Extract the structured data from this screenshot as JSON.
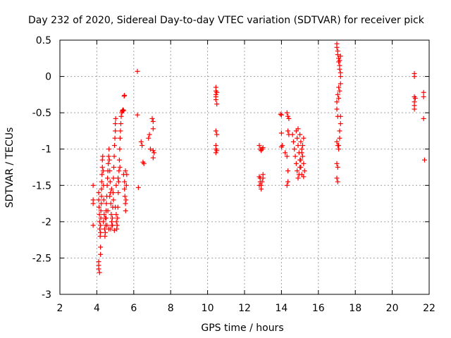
{
  "chart_data": {
    "type": "scatter",
    "title": "Day 232 of 2020, Sidereal Day-to-day VTEC variation (SDTVAR) for receiver pick",
    "xlabel": "GPS time / hours",
    "ylabel": "SDTVAR / TECUs",
    "xlim": [
      2,
      22
    ],
    "ylim": [
      -3,
      0.5
    ],
    "x_ticks": [
      2,
      4,
      6,
      8,
      10,
      12,
      14,
      16,
      18,
      20,
      22
    ],
    "y_ticks": [
      0.5,
      0,
      -0.5,
      -1,
      -1.5,
      -2,
      -2.5,
      -3
    ],
    "x_tick_labels": [
      "2",
      "4",
      "6",
      "8",
      "10",
      "12",
      "14",
      "16",
      "18",
      "20",
      "22"
    ],
    "y_tick_labels": [
      "0.5",
      "0",
      "-0.5",
      "-1",
      "-1.5",
      "-2",
      "-2.5",
      "-3"
    ],
    "grid": true,
    "marker": "+",
    "color": "#ff0000",
    "series": [
      {
        "values": [
          [
            3.8,
            -1.5
          ],
          [
            3.8,
            -1.7
          ],
          [
            3.8,
            -1.75
          ],
          [
            3.8,
            -2.05
          ],
          [
            4.1,
            -2.6
          ],
          [
            4.1,
            -2.65
          ],
          [
            4.1,
            -2.55
          ],
          [
            4.15,
            -2.7
          ],
          [
            4.2,
            -2.35
          ],
          [
            4.2,
            -2.45
          ],
          [
            4.1,
            -1.6
          ],
          [
            4.1,
            -1.7
          ],
          [
            4.12,
            -1.8
          ],
          [
            4.14,
            -1.9
          ],
          [
            4.15,
            -2.0
          ],
          [
            4.16,
            -2.1
          ],
          [
            4.18,
            -2.2
          ],
          [
            4.2,
            -2.15
          ],
          [
            4.2,
            -2.05
          ],
          [
            4.22,
            -1.95
          ],
          [
            4.22,
            -1.85
          ],
          [
            4.24,
            -1.75
          ],
          [
            4.25,
            -1.65
          ],
          [
            4.25,
            -1.55
          ],
          [
            4.26,
            -1.45
          ],
          [
            4.28,
            -1.35
          ],
          [
            4.3,
            -1.25
          ],
          [
            4.3,
            -1.15
          ],
          [
            4.32,
            -1.1
          ],
          [
            4.34,
            -1.3
          ],
          [
            4.36,
            -1.5
          ],
          [
            4.38,
            -1.7
          ],
          [
            4.4,
            -1.9
          ],
          [
            4.42,
            -2.1
          ],
          [
            4.44,
            -2.2
          ],
          [
            4.46,
            -2.15
          ],
          [
            4.48,
            -2.05
          ],
          [
            4.5,
            -1.95
          ],
          [
            4.5,
            -1.85
          ],
          [
            4.52,
            -1.75
          ],
          [
            4.54,
            -1.65
          ],
          [
            4.56,
            -1.5
          ],
          [
            4.58,
            -1.4
          ],
          [
            4.6,
            -1.3
          ],
          [
            4.62,
            -1.2
          ],
          [
            4.64,
            -1.1
          ],
          [
            4.66,
            -1.0
          ],
          [
            4.68,
            -1.15
          ],
          [
            4.7,
            -1.3
          ],
          [
            4.72,
            -1.45
          ],
          [
            4.74,
            -1.6
          ],
          [
            4.76,
            -1.75
          ],
          [
            4.78,
            -1.9
          ],
          [
            4.8,
            -2.0
          ],
          [
            4.82,
            -2.05
          ],
          [
            4.84,
            -1.95
          ],
          [
            4.86,
            -1.8
          ],
          [
            4.88,
            -1.6
          ],
          [
            4.9,
            -1.4
          ],
          [
            4.92,
            -1.25
          ],
          [
            4.94,
            -1.1
          ],
          [
            4.96,
            -0.95
          ],
          [
            4.98,
            -0.85
          ],
          [
            5.0,
            -0.75
          ],
          [
            5.0,
            -0.65
          ],
          [
            5.02,
            -0.58
          ],
          [
            5.05,
            -1.9
          ],
          [
            5.06,
            -2.0
          ],
          [
            5.08,
            -2.1
          ],
          [
            5.1,
            -2.05
          ],
          [
            5.12,
            -1.95
          ],
          [
            5.14,
            -1.8
          ],
          [
            5.16,
            -1.6
          ],
          [
            5.18,
            -1.45
          ],
          [
            5.2,
            -1.3
          ],
          [
            5.22,
            -1.15
          ],
          [
            5.24,
            -1.0
          ],
          [
            5.26,
            -0.85
          ],
          [
            5.28,
            -0.75
          ],
          [
            5.3,
            -0.65
          ],
          [
            5.32,
            -0.55
          ],
          [
            5.35,
            -0.5
          ],
          [
            5.38,
            -0.48
          ],
          [
            5.4,
            -0.47
          ],
          [
            5.42,
            -0.46
          ],
          [
            5.45,
            -0.47
          ],
          [
            5.5,
            -0.26
          ],
          [
            5.48,
            -0.27
          ],
          [
            4.35,
            -2.0
          ],
          [
            4.45,
            -1.95
          ],
          [
            4.55,
            -2.05
          ],
          [
            4.65,
            -2.1
          ],
          [
            4.75,
            -2.1
          ],
          [
            4.85,
            -2.05
          ],
          [
            4.95,
            -2.12
          ],
          [
            4.6,
            -1.85
          ],
          [
            4.7,
            -1.65
          ],
          [
            4.8,
            -1.55
          ],
          [
            4.9,
            -1.7
          ],
          [
            5.0,
            -1.8
          ],
          [
            5.05,
            -1.5
          ],
          [
            5.15,
            -1.4
          ],
          [
            5.25,
            -1.25
          ],
          [
            5.45,
            -1.35
          ],
          [
            5.5,
            -1.45
          ],
          [
            5.5,
            -1.55
          ],
          [
            5.52,
            -1.65
          ],
          [
            5.55,
            -1.75
          ],
          [
            5.56,
            -1.85
          ],
          [
            5.58,
            -1.7
          ],
          [
            5.6,
            -1.5
          ],
          [
            5.62,
            -1.35
          ],
          [
            5.55,
            -1.3
          ],
          [
            6.2,
            0.07
          ],
          [
            6.2,
            -0.53
          ],
          [
            6.25,
            -1.53
          ],
          [
            6.4,
            -0.9
          ],
          [
            6.45,
            -0.95
          ],
          [
            6.5,
            -1.18
          ],
          [
            6.55,
            -1.2
          ],
          [
            6.8,
            -0.85
          ],
          [
            6.85,
            -0.8
          ],
          [
            6.9,
            -1.0
          ],
          [
            7.0,
            -0.58
          ],
          [
            7.05,
            -0.62
          ],
          [
            7.05,
            -0.72
          ],
          [
            7.05,
            -1.02
          ],
          [
            7.1,
            -1.05
          ],
          [
            7.05,
            -1.12
          ],
          [
            10.45,
            -0.15
          ],
          [
            10.45,
            -0.2
          ],
          [
            10.45,
            -0.25
          ],
          [
            10.45,
            -0.28
          ],
          [
            10.45,
            -0.32
          ],
          [
            10.5,
            -0.38
          ],
          [
            10.5,
            -0.22
          ],
          [
            10.45,
            -0.75
          ],
          [
            10.5,
            -0.8
          ],
          [
            10.45,
            -0.95
          ],
          [
            10.45,
            -1.0
          ],
          [
            10.5,
            -1.02
          ],
          [
            10.45,
            -1.05
          ],
          [
            12.8,
            -0.95
          ],
          [
            12.85,
            -1.0
          ],
          [
            12.9,
            -1.02
          ],
          [
            12.95,
            -1.0
          ],
          [
            13.0,
            -0.98
          ],
          [
            12.8,
            -1.38
          ],
          [
            12.85,
            -1.4
          ],
          [
            12.85,
            -1.45
          ],
          [
            12.9,
            -1.5
          ],
          [
            12.9,
            -1.55
          ],
          [
            12.95,
            -1.45
          ],
          [
            13.0,
            -1.4
          ],
          [
            13.0,
            -1.35
          ],
          [
            12.8,
            -1.5
          ],
          [
            13.95,
            -0.52
          ],
          [
            14.0,
            -0.53
          ],
          [
            14.0,
            -0.78
          ],
          [
            14.05,
            -0.95
          ],
          [
            14.0,
            -0.97
          ],
          [
            14.2,
            -1.05
          ],
          [
            14.3,
            -1.1
          ],
          [
            14.35,
            -1.3
          ],
          [
            14.3,
            -1.5
          ],
          [
            14.35,
            -1.45
          ],
          [
            14.3,
            -0.5
          ],
          [
            14.35,
            -0.55
          ],
          [
            14.4,
            -0.58
          ],
          [
            14.35,
            -0.75
          ],
          [
            14.4,
            -0.8
          ],
          [
            14.6,
            -0.8
          ],
          [
            14.65,
            -0.9
          ],
          [
            14.7,
            -1.0
          ],
          [
            14.75,
            -1.1
          ],
          [
            14.8,
            -1.2
          ],
          [
            14.85,
            -1.3
          ],
          [
            14.9,
            -1.4
          ],
          [
            14.95,
            -1.35
          ],
          [
            15.0,
            -1.25
          ],
          [
            15.05,
            -1.15
          ],
          [
            15.1,
            -1.05
          ],
          [
            15.15,
            -0.95
          ],
          [
            15.2,
            -0.85
          ],
          [
            14.8,
            -0.75
          ],
          [
            14.85,
            -0.85
          ],
          [
            14.9,
            -0.95
          ],
          [
            14.95,
            -1.05
          ],
          [
            15.0,
            -1.15
          ],
          [
            15.05,
            -1.25
          ],
          [
            15.1,
            -1.35
          ],
          [
            14.9,
            -0.72
          ],
          [
            15.0,
            -0.8
          ],
          [
            15.05,
            -0.9
          ],
          [
            15.1,
            -1.0
          ],
          [
            15.15,
            -1.1
          ],
          [
            15.2,
            -1.2
          ],
          [
            15.25,
            -1.3
          ],
          [
            15.2,
            -1.38
          ],
          [
            17.0,
            0.45
          ],
          [
            17.0,
            0.4
          ],
          [
            17.05,
            0.35
          ],
          [
            17.05,
            0.3
          ],
          [
            17.1,
            0.25
          ],
          [
            17.1,
            0.2
          ],
          [
            17.15,
            0.15
          ],
          [
            17.15,
            0.1
          ],
          [
            17.2,
            0.05
          ],
          [
            17.2,
            0.0
          ],
          [
            17.2,
            -0.1
          ],
          [
            17.15,
            -0.2
          ],
          [
            17.1,
            -0.3
          ],
          [
            17.05,
            -0.25
          ],
          [
            17.0,
            -0.35
          ],
          [
            17.0,
            -0.45
          ],
          [
            17.05,
            -0.55
          ],
          [
            17.1,
            -0.15
          ],
          [
            17.15,
            0.22
          ],
          [
            17.2,
            0.28
          ],
          [
            17.0,
            -0.9
          ],
          [
            17.05,
            -0.95
          ],
          [
            17.1,
            -1.0
          ],
          [
            17.0,
            -1.2
          ],
          [
            17.05,
            -1.25
          ],
          [
            17.0,
            -1.4
          ],
          [
            17.05,
            -1.45
          ],
          [
            17.2,
            -0.55
          ],
          [
            17.2,
            -0.65
          ],
          [
            17.15,
            -0.75
          ],
          [
            17.15,
            -0.85
          ],
          [
            17.1,
            -0.95
          ],
          [
            21.2,
            0.04
          ],
          [
            21.2,
            0.0
          ],
          [
            21.2,
            -0.28
          ],
          [
            21.25,
            -0.3
          ],
          [
            21.2,
            -0.35
          ],
          [
            21.2,
            -0.4
          ],
          [
            21.2,
            -0.45
          ],
          [
            21.7,
            -0.22
          ],
          [
            21.7,
            -0.28
          ],
          [
            21.7,
            -0.58
          ],
          [
            21.75,
            -1.15
          ]
        ]
      }
    ]
  }
}
